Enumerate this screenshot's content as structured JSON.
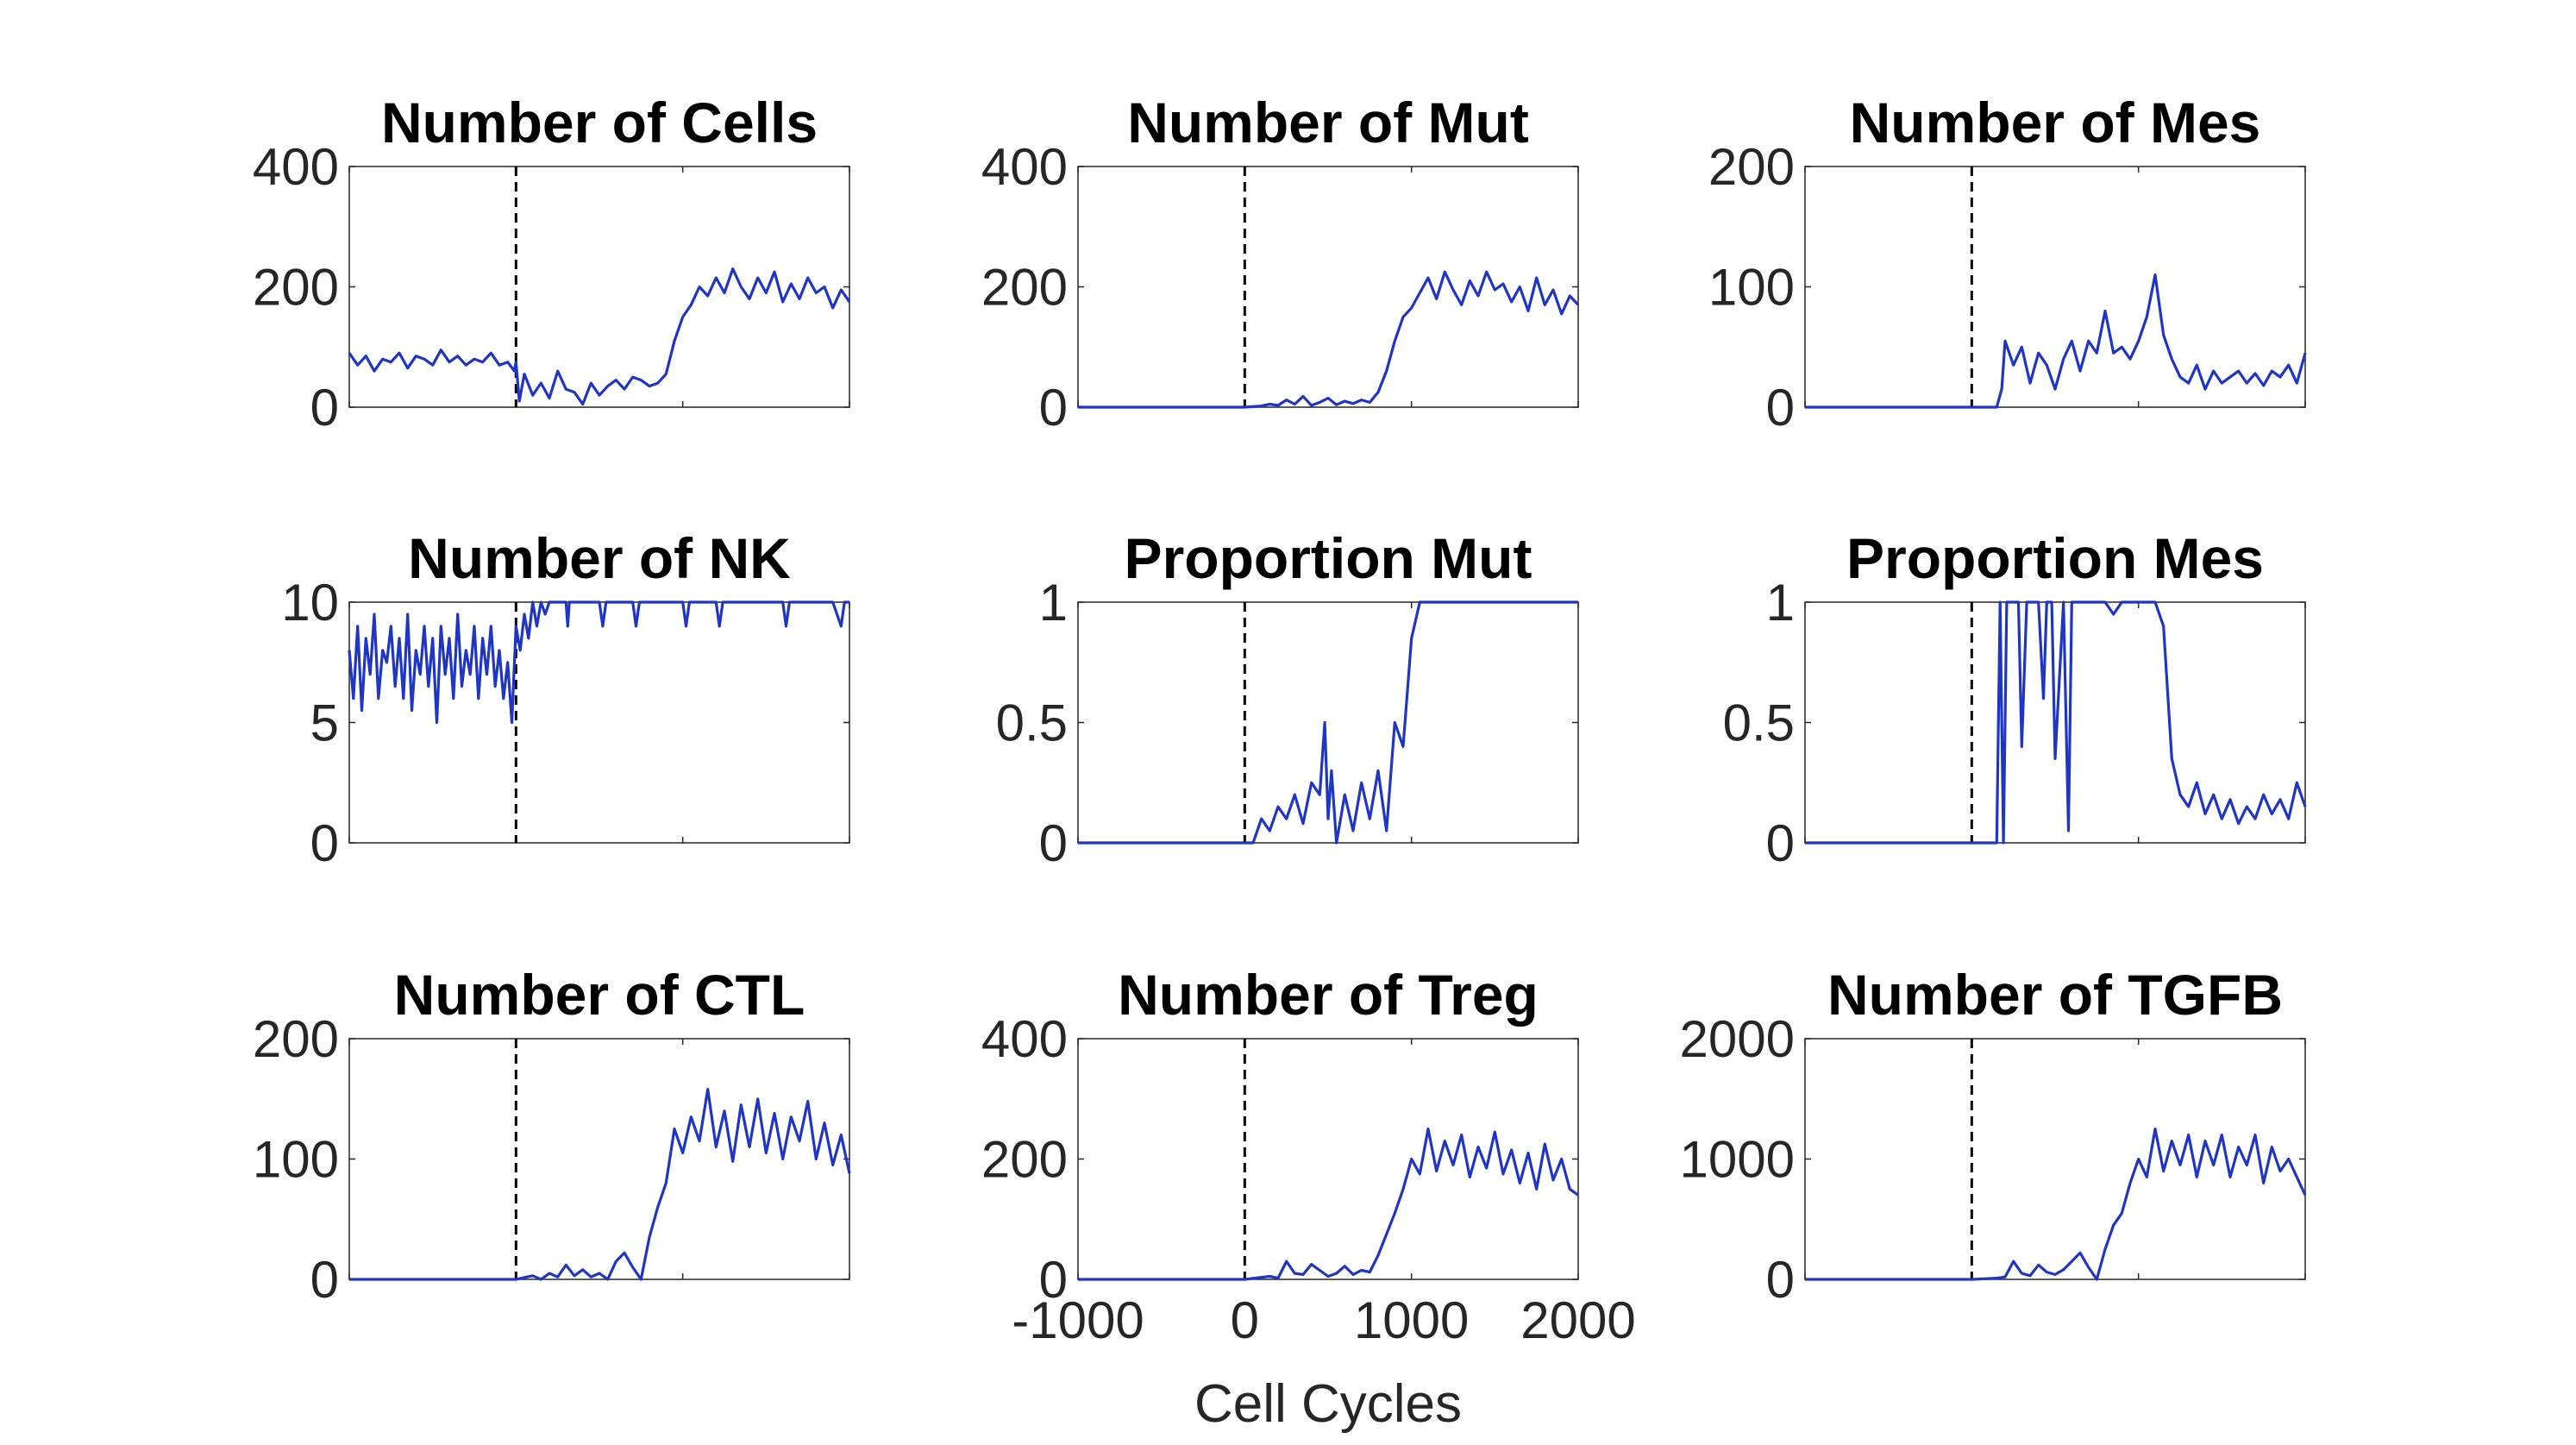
{
  "figure": {
    "xlabel": "Cell Cycles",
    "line_color": "#1f35c4",
    "vline_color": "#000000"
  },
  "chart_data": [
    {
      "type": "line",
      "title": "Number of Cells",
      "xlim": [
        -1000,
        2000
      ],
      "ylim": [
        0,
        400
      ],
      "yticks": [
        "0",
        "200",
        "400"
      ],
      "xticks": [],
      "vline_x": 0,
      "series": [
        {
          "x": [
            -1000,
            -950,
            -900,
            -850,
            -800,
            -750,
            -700,
            -650,
            -600,
            -550,
            -500,
            -450,
            -400,
            -350,
            -300,
            -250,
            -200,
            -150,
            -100,
            -50,
            -10,
            0,
            20,
            50,
            100,
            150,
            200,
            250,
            300,
            350,
            400,
            450,
            500,
            550,
            600,
            650,
            700,
            750,
            800,
            850,
            900,
            950,
            1000,
            1050,
            1100,
            1150,
            1200,
            1250,
            1300,
            1350,
            1400,
            1450,
            1500,
            1550,
            1600,
            1650,
            1700,
            1750,
            1800,
            1850,
            1900,
            1950,
            2000
          ],
          "y": [
            90,
            70,
            85,
            60,
            80,
            75,
            90,
            65,
            85,
            80,
            70,
            95,
            75,
            85,
            70,
            80,
            75,
            90,
            70,
            75,
            60,
            75,
            10,
            55,
            20,
            40,
            15,
            60,
            30,
            25,
            5,
            40,
            20,
            35,
            45,
            30,
            50,
            45,
            35,
            40,
            55,
            110,
            150,
            170,
            200,
            185,
            215,
            190,
            230,
            200,
            180,
            215,
            190,
            225,
            175,
            205,
            180,
            215,
            190,
            200,
            165,
            195,
            175
          ]
        }
      ]
    },
    {
      "type": "line",
      "title": "Number of Mut",
      "xlim": [
        -1000,
        2000
      ],
      "ylim": [
        0,
        400
      ],
      "yticks": [
        "0",
        "200",
        "400"
      ],
      "xticks": [],
      "vline_x": 0,
      "series": [
        {
          "x": [
            -1000,
            0,
            100,
            150,
            200,
            250,
            300,
            350,
            400,
            450,
            500,
            550,
            600,
            650,
            700,
            750,
            800,
            850,
            900,
            950,
            1000,
            1050,
            1100,
            1150,
            1200,
            1250,
            1300,
            1350,
            1400,
            1450,
            1500,
            1550,
            1600,
            1650,
            1700,
            1750,
            1800,
            1850,
            1900,
            1950,
            2000
          ],
          "y": [
            0,
            0,
            2,
            5,
            3,
            12,
            5,
            18,
            3,
            8,
            15,
            4,
            10,
            6,
            12,
            8,
            25,
            60,
            110,
            150,
            165,
            190,
            215,
            180,
            225,
            195,
            170,
            210,
            185,
            225,
            195,
            205,
            175,
            200,
            160,
            215,
            170,
            195,
            155,
            185,
            170
          ]
        }
      ]
    },
    {
      "type": "line",
      "title": "Number of Mes",
      "xlim": [
        -1000,
        2000
      ],
      "ylim": [
        0,
        200
      ],
      "yticks": [
        "0",
        "100",
        "200"
      ],
      "xticks": [],
      "vline_x": 0,
      "series": [
        {
          "x": [
            -1000,
            0,
            150,
            180,
            200,
            250,
            300,
            350,
            400,
            450,
            500,
            550,
            600,
            650,
            700,
            750,
            800,
            850,
            900,
            950,
            1000,
            1050,
            1100,
            1150,
            1200,
            1250,
            1300,
            1350,
            1400,
            1450,
            1500,
            1550,
            1600,
            1650,
            1700,
            1750,
            1800,
            1850,
            1900,
            1950,
            2000
          ],
          "y": [
            0,
            0,
            0,
            15,
            55,
            35,
            50,
            20,
            45,
            35,
            15,
            40,
            55,
            30,
            55,
            45,
            80,
            45,
            50,
            40,
            55,
            75,
            110,
            60,
            40,
            25,
            20,
            35,
            15,
            30,
            20,
            25,
            30,
            20,
            28,
            18,
            30,
            25,
            35,
            20,
            45
          ]
        }
      ]
    },
    {
      "type": "line",
      "title": "Number of NK",
      "xlim": [
        -1000,
        2000
      ],
      "ylim": [
        0,
        10
      ],
      "yticks": [
        "0",
        "5",
        "10"
      ],
      "xticks": [],
      "vline_x": 0,
      "series": [
        {
          "x": [
            -1000,
            -975,
            -950,
            -925,
            -900,
            -875,
            -850,
            -825,
            -800,
            -775,
            -750,
            -725,
            -700,
            -675,
            -650,
            -625,
            -600,
            -575,
            -550,
            -525,
            -500,
            -475,
            -450,
            -425,
            -400,
            -375,
            -350,
            -325,
            -300,
            -275,
            -250,
            -225,
            -200,
            -175,
            -150,
            -125,
            -100,
            -75,
            -50,
            -25,
            0,
            25,
            50,
            75,
            100,
            125,
            150,
            175,
            200,
            300,
            310,
            320,
            400,
            500,
            520,
            540,
            700,
            720,
            740,
            900,
            1000,
            1020,
            1040,
            1100,
            1200,
            1220,
            1240,
            1400,
            1600,
            1620,
            1640,
            1700,
            1900,
            1950,
            1970,
            2000
          ],
          "y": [
            8,
            6,
            9,
            5.5,
            8.5,
            7,
            9.5,
            6,
            8,
            7.5,
            9,
            6.5,
            8.5,
            6,
            9.5,
            5.5,
            8,
            7,
            9,
            6.5,
            8.5,
            5,
            9,
            7,
            8.5,
            6,
            9.5,
            6.5,
            8,
            7,
            9,
            6,
            8.5,
            7,
            9,
            6.5,
            8,
            6,
            7.5,
            5,
            9,
            8,
            9.5,
            8.5,
            10,
            9,
            10,
            9.5,
            10,
            10,
            9,
            10,
            10,
            10,
            9,
            10,
            10,
            9,
            10,
            10,
            10,
            9,
            10,
            10,
            10,
            9,
            10,
            10,
            10,
            9,
            10,
            10,
            10,
            9,
            10,
            10
          ]
        }
      ]
    },
    {
      "type": "line",
      "title": "Proportion Mut",
      "xlim": [
        -1000,
        2000
      ],
      "ylim": [
        0,
        1
      ],
      "yticks": [
        "0",
        "0.5",
        "1"
      ],
      "xticks": [],
      "vline_x": 0,
      "series": [
        {
          "x": [
            -1000,
            0,
            50,
            100,
            150,
            200,
            250,
            300,
            350,
            400,
            450,
            480,
            500,
            520,
            550,
            600,
            650,
            700,
            750,
            800,
            850,
            900,
            950,
            1000,
            1050,
            1100,
            2000
          ],
          "y": [
            0,
            0,
            0,
            0.1,
            0.05,
            0.15,
            0.1,
            0.2,
            0.08,
            0.25,
            0.2,
            0.5,
            0.1,
            0.3,
            0,
            0.2,
            0.05,
            0.25,
            0.1,
            0.3,
            0.05,
            0.5,
            0.4,
            0.85,
            1,
            1,
            1
          ]
        }
      ]
    },
    {
      "type": "line",
      "title": "Proportion Mes",
      "xlim": [
        -1000,
        2000
      ],
      "ylim": [
        0,
        1
      ],
      "yticks": [
        "0",
        "0.5",
        "1"
      ],
      "xticks": [],
      "vline_x": 0,
      "series": [
        {
          "x": [
            -1000,
            0,
            150,
            170,
            190,
            210,
            250,
            280,
            300,
            330,
            350,
            400,
            430,
            450,
            480,
            500,
            550,
            580,
            600,
            630,
            700,
            750,
            800,
            850,
            900,
            950,
            1000,
            1050,
            1100,
            1150,
            1200,
            1250,
            1300,
            1350,
            1400,
            1450,
            1500,
            1550,
            1600,
            1650,
            1700,
            1750,
            1800,
            1850,
            1900,
            1950,
            2000
          ],
          "y": [
            0,
            0,
            0,
            1,
            0,
            1,
            1,
            1,
            0.4,
            1,
            1,
            1,
            0.6,
            1,
            1,
            0.35,
            1,
            0.05,
            1,
            1,
            1,
            1,
            1,
            0.95,
            1,
            1,
            1,
            1,
            1,
            0.9,
            0.35,
            0.2,
            0.15,
            0.25,
            0.12,
            0.2,
            0.1,
            0.18,
            0.08,
            0.15,
            0.1,
            0.2,
            0.12,
            0.18,
            0.1,
            0.25,
            0.15
          ]
        }
      ]
    },
    {
      "type": "line",
      "title": "Number of CTL",
      "xlim": [
        -1000,
        2000
      ],
      "ylim": [
        0,
        200
      ],
      "yticks": [
        "0",
        "100",
        "200"
      ],
      "xticks": [],
      "vline_x": 0,
      "series": [
        {
          "x": [
            -1000,
            0,
            100,
            150,
            200,
            250,
            300,
            350,
            400,
            450,
            500,
            550,
            600,
            650,
            700,
            750,
            800,
            850,
            900,
            950,
            1000,
            1050,
            1100,
            1150,
            1200,
            1250,
            1300,
            1350,
            1400,
            1450,
            1500,
            1550,
            1600,
            1650,
            1700,
            1750,
            1800,
            1850,
            1900,
            1950,
            2000
          ],
          "y": [
            0,
            0,
            3,
            0,
            5,
            2,
            12,
            3,
            8,
            2,
            5,
            0,
            15,
            22,
            10,
            0,
            35,
            60,
            80,
            125,
            105,
            135,
            115,
            158,
            110,
            140,
            98,
            145,
            110,
            150,
            105,
            138,
            100,
            135,
            115,
            148,
            100,
            130,
            95,
            120,
            88
          ]
        }
      ]
    },
    {
      "type": "line",
      "title": "Number of Treg",
      "xlim": [
        -1000,
        2000
      ],
      "ylim": [
        0,
        400
      ],
      "yticks": [
        "0",
        "200",
        "400"
      ],
      "xticks": [
        "-1000",
        "0",
        "1000",
        "2000"
      ],
      "xlabel": "Cell Cycles",
      "vline_x": 0,
      "series": [
        {
          "x": [
            -1000,
            0,
            150,
            200,
            250,
            300,
            350,
            400,
            450,
            500,
            550,
            600,
            650,
            700,
            750,
            800,
            850,
            900,
            950,
            1000,
            1050,
            1100,
            1150,
            1200,
            1250,
            1300,
            1350,
            1400,
            1450,
            1500,
            1550,
            1600,
            1650,
            1700,
            1750,
            1800,
            1850,
            1900,
            1950,
            2000
          ],
          "y": [
            0,
            0,
            5,
            2,
            30,
            10,
            8,
            25,
            15,
            5,
            10,
            22,
            8,
            15,
            12,
            40,
            75,
            110,
            150,
            200,
            175,
            250,
            180,
            230,
            190,
            240,
            170,
            220,
            185,
            245,
            175,
            215,
            160,
            210,
            150,
            225,
            165,
            200,
            150,
            140
          ]
        }
      ]
    },
    {
      "type": "line",
      "title": "Number of TGFB",
      "xlim": [
        -1000,
        2000
      ],
      "ylim": [
        0,
        2000
      ],
      "yticks": [
        "0",
        "1000",
        "2000"
      ],
      "xticks": [],
      "vline_x": 0,
      "series": [
        {
          "x": [
            -1000,
            0,
            150,
            200,
            250,
            300,
            350,
            400,
            450,
            500,
            550,
            600,
            650,
            700,
            750,
            800,
            850,
            900,
            950,
            1000,
            1050,
            1100,
            1150,
            1200,
            1250,
            1300,
            1350,
            1400,
            1450,
            1500,
            1550,
            1600,
            1650,
            1700,
            1750,
            1800,
            1850,
            1900,
            1950,
            2000
          ],
          "y": [
            0,
            0,
            10,
            20,
            150,
            50,
            30,
            120,
            60,
            40,
            80,
            150,
            220,
            100,
            0,
            250,
            450,
            550,
            800,
            1000,
            850,
            1250,
            900,
            1150,
            950,
            1200,
            850,
            1150,
            950,
            1200,
            850,
            1100,
            950,
            1200,
            800,
            1100,
            900,
            1000,
            850,
            700
          ]
        }
      ]
    }
  ]
}
